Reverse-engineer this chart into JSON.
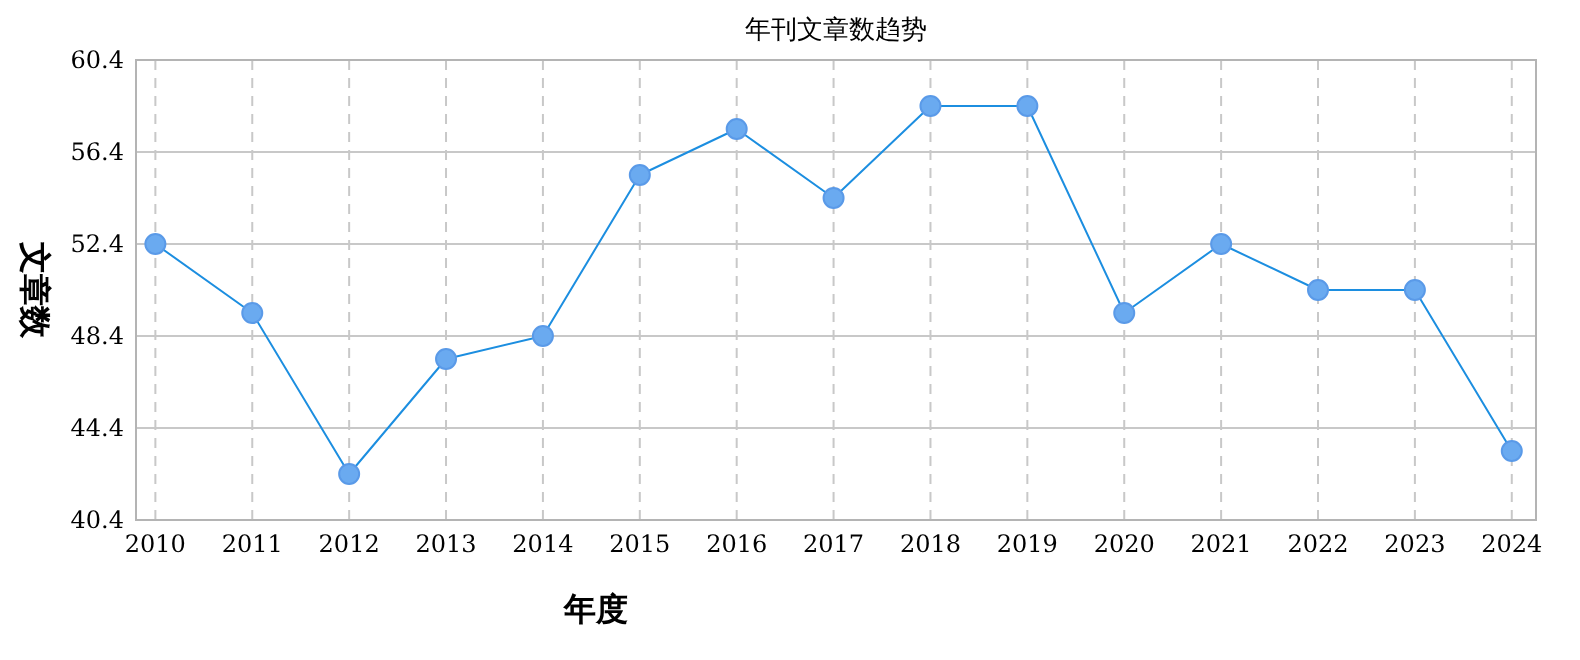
{
  "chart_data": {
    "type": "line",
    "title": "年刊文章数趋势",
    "xlabel": "年度",
    "ylabel": "文章数",
    "x": [
      2010,
      2011,
      2012,
      2013,
      2014,
      2015,
      2016,
      2017,
      2018,
      2019,
      2020,
      2021,
      2022,
      2023,
      2024
    ],
    "series": [
      {
        "color": "#1c8ee0",
        "values": [
          52.4,
          49.4,
          42.4,
          47.4,
          48.4,
          55.4,
          57.4,
          54.4,
          58.4,
          58.4,
          49.4,
          52.4,
          50.4,
          50.4,
          43.4
        ]
      }
    ],
    "xlim": [
      2009.8,
      2024.25
    ],
    "xticks": [
      2010,
      2011,
      2012,
      2013,
      2014,
      2015,
      2016,
      2017,
      2018,
      2019,
      2020,
      2021,
      2022,
      2023,
      2024
    ],
    "ylim": [
      40.4,
      60.4
    ],
    "yticks": [
      40.4,
      44.4,
      48.4,
      52.4,
      56.4,
      60.4
    ],
    "grid": true,
    "marker": "circle",
    "line_style": "solid"
  }
}
